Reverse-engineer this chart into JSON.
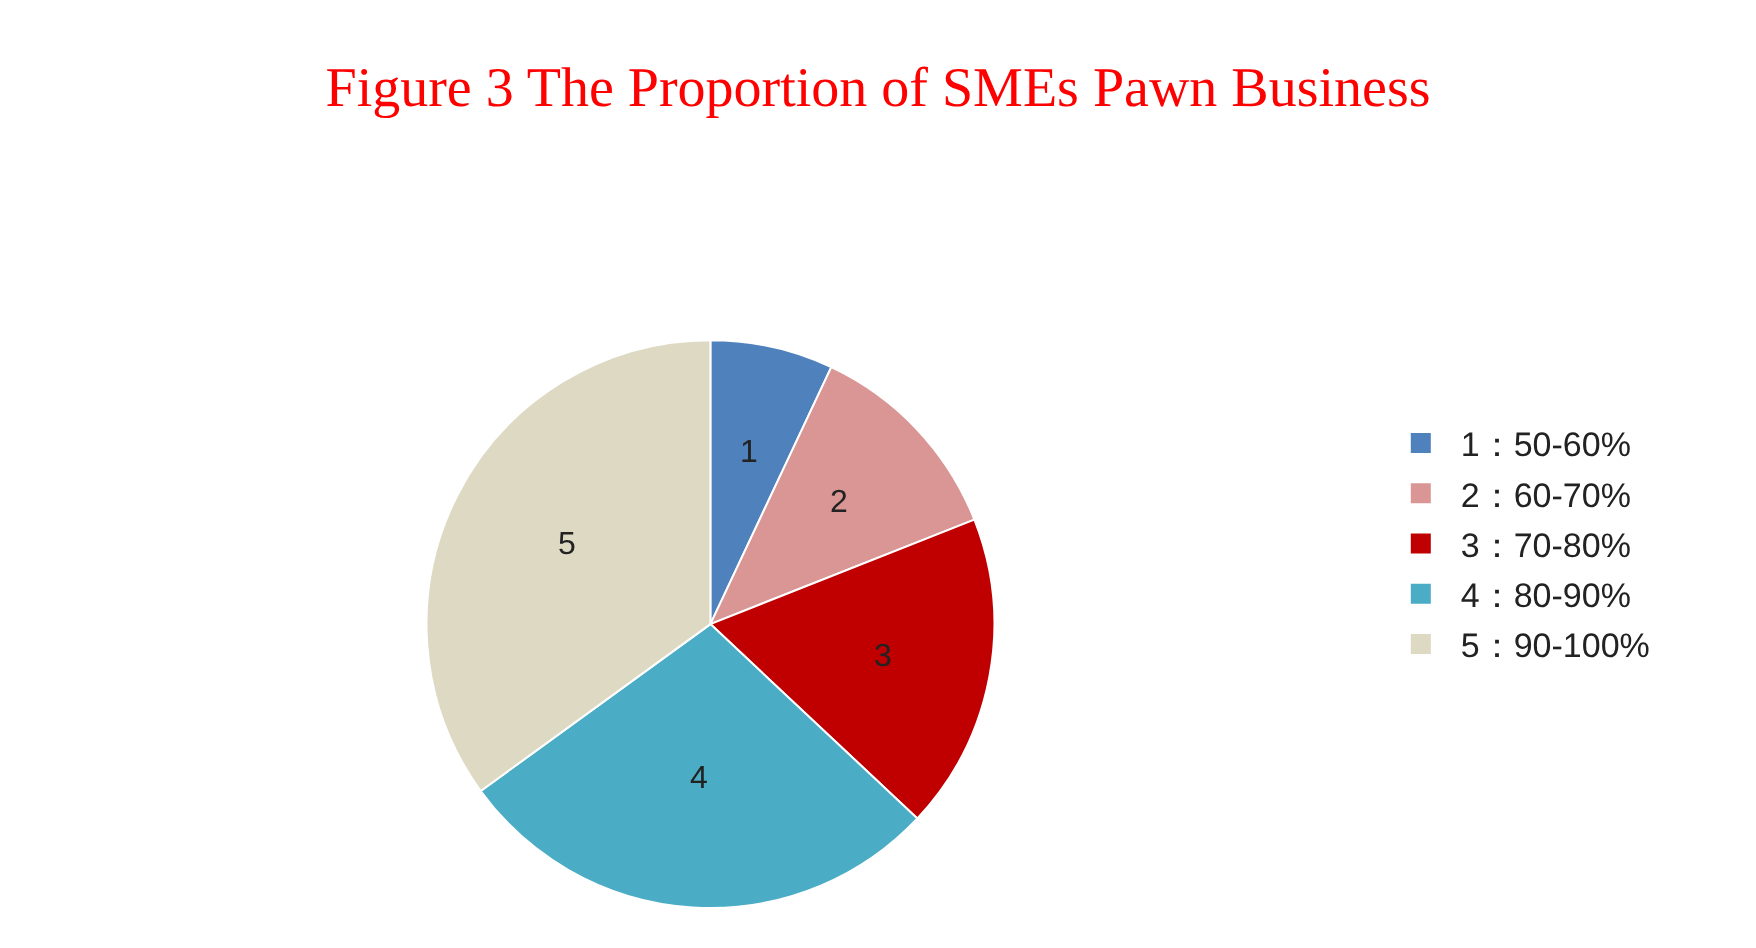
{
  "chart_data": {
    "type": "pie",
    "title": "Figure 3 The Proportion of SMEs Pawn Business",
    "categories": [
      "1：50-60%",
      "2：60-70%",
      "3：70-80%",
      "4：80-90%",
      "5：90-100%"
    ],
    "values": [
      7,
      12,
      18,
      28,
      35
    ],
    "annotations": [
      "1",
      "2",
      "3",
      "4",
      "5"
    ],
    "colors": [
      "#4f81bd",
      "#d99694",
      "#c00000",
      "#4bacc6",
      "#ddd9c3"
    ],
    "legend": "right"
  }
}
